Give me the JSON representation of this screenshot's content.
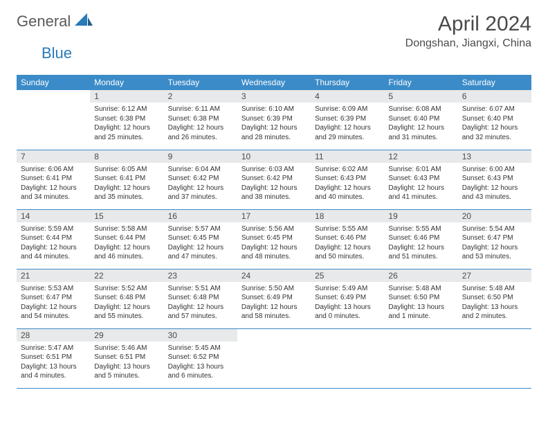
{
  "logo": {
    "word1": "General",
    "word2": "Blue"
  },
  "title": "April 2024",
  "location": "Dongshan, Jiangxi, China",
  "colors": {
    "header_bg": "#3b8bc8",
    "header_fg": "#ffffff",
    "daynum_bg": "#e8e9ea",
    "rule": "#3b8bc8",
    "logo_gray": "#5a5a5a",
    "logo_blue": "#2a7ab8"
  },
  "weekdays": [
    "Sunday",
    "Monday",
    "Tuesday",
    "Wednesday",
    "Thursday",
    "Friday",
    "Saturday"
  ],
  "leading_blanks": 1,
  "days": [
    {
      "n": 1,
      "sr": "6:12 AM",
      "ss": "6:38 PM",
      "dl": "12 hours and 25 minutes."
    },
    {
      "n": 2,
      "sr": "6:11 AM",
      "ss": "6:38 PM",
      "dl": "12 hours and 26 minutes."
    },
    {
      "n": 3,
      "sr": "6:10 AM",
      "ss": "6:39 PM",
      "dl": "12 hours and 28 minutes."
    },
    {
      "n": 4,
      "sr": "6:09 AM",
      "ss": "6:39 PM",
      "dl": "12 hours and 29 minutes."
    },
    {
      "n": 5,
      "sr": "6:08 AM",
      "ss": "6:40 PM",
      "dl": "12 hours and 31 minutes."
    },
    {
      "n": 6,
      "sr": "6:07 AM",
      "ss": "6:40 PM",
      "dl": "12 hours and 32 minutes."
    },
    {
      "n": 7,
      "sr": "6:06 AM",
      "ss": "6:41 PM",
      "dl": "12 hours and 34 minutes."
    },
    {
      "n": 8,
      "sr": "6:05 AM",
      "ss": "6:41 PM",
      "dl": "12 hours and 35 minutes."
    },
    {
      "n": 9,
      "sr": "6:04 AM",
      "ss": "6:42 PM",
      "dl": "12 hours and 37 minutes."
    },
    {
      "n": 10,
      "sr": "6:03 AM",
      "ss": "6:42 PM",
      "dl": "12 hours and 38 minutes."
    },
    {
      "n": 11,
      "sr": "6:02 AM",
      "ss": "6:43 PM",
      "dl": "12 hours and 40 minutes."
    },
    {
      "n": 12,
      "sr": "6:01 AM",
      "ss": "6:43 PM",
      "dl": "12 hours and 41 minutes."
    },
    {
      "n": 13,
      "sr": "6:00 AM",
      "ss": "6:43 PM",
      "dl": "12 hours and 43 minutes."
    },
    {
      "n": 14,
      "sr": "5:59 AM",
      "ss": "6:44 PM",
      "dl": "12 hours and 44 minutes."
    },
    {
      "n": 15,
      "sr": "5:58 AM",
      "ss": "6:44 PM",
      "dl": "12 hours and 46 minutes."
    },
    {
      "n": 16,
      "sr": "5:57 AM",
      "ss": "6:45 PM",
      "dl": "12 hours and 47 minutes."
    },
    {
      "n": 17,
      "sr": "5:56 AM",
      "ss": "6:45 PM",
      "dl": "12 hours and 48 minutes."
    },
    {
      "n": 18,
      "sr": "5:55 AM",
      "ss": "6:46 PM",
      "dl": "12 hours and 50 minutes."
    },
    {
      "n": 19,
      "sr": "5:55 AM",
      "ss": "6:46 PM",
      "dl": "12 hours and 51 minutes."
    },
    {
      "n": 20,
      "sr": "5:54 AM",
      "ss": "6:47 PM",
      "dl": "12 hours and 53 minutes."
    },
    {
      "n": 21,
      "sr": "5:53 AM",
      "ss": "6:47 PM",
      "dl": "12 hours and 54 minutes."
    },
    {
      "n": 22,
      "sr": "5:52 AM",
      "ss": "6:48 PM",
      "dl": "12 hours and 55 minutes."
    },
    {
      "n": 23,
      "sr": "5:51 AM",
      "ss": "6:48 PM",
      "dl": "12 hours and 57 minutes."
    },
    {
      "n": 24,
      "sr": "5:50 AM",
      "ss": "6:49 PM",
      "dl": "12 hours and 58 minutes."
    },
    {
      "n": 25,
      "sr": "5:49 AM",
      "ss": "6:49 PM",
      "dl": "13 hours and 0 minutes."
    },
    {
      "n": 26,
      "sr": "5:48 AM",
      "ss": "6:50 PM",
      "dl": "13 hours and 1 minute."
    },
    {
      "n": 27,
      "sr": "5:48 AM",
      "ss": "6:50 PM",
      "dl": "13 hours and 2 minutes."
    },
    {
      "n": 28,
      "sr": "5:47 AM",
      "ss": "6:51 PM",
      "dl": "13 hours and 4 minutes."
    },
    {
      "n": 29,
      "sr": "5:46 AM",
      "ss": "6:51 PM",
      "dl": "13 hours and 5 minutes."
    },
    {
      "n": 30,
      "sr": "5:45 AM",
      "ss": "6:52 PM",
      "dl": "13 hours and 6 minutes."
    }
  ],
  "labels": {
    "sunrise": "Sunrise:",
    "sunset": "Sunset:",
    "daylight": "Daylight:"
  }
}
